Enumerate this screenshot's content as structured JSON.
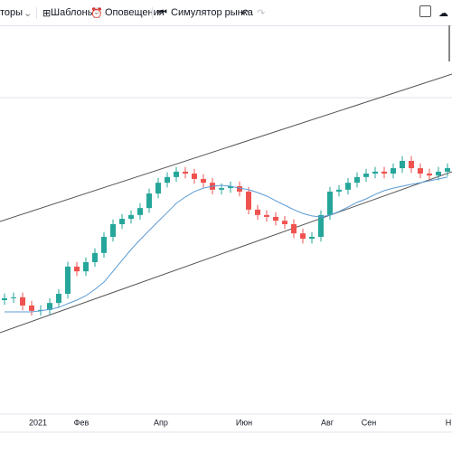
{
  "toolbar": {
    "indicators": "торы",
    "templates": "Шаблоны",
    "alerts": "Оповещения",
    "replay": "Симулятор рынка"
  },
  "chart_data": {
    "type": "candlestick",
    "up_color": "#26a69a",
    "down_color": "#ef5350",
    "ma_color": "#5b9bd5",
    "ylim": [
      0,
      100
    ],
    "xlim": [
      -0.5,
      49.5
    ],
    "xticks": [
      {
        "value": 3.7,
        "label": "2021"
      },
      {
        "value": 8.5,
        "label": "Фев"
      },
      {
        "value": 17.3,
        "label": "Апр"
      },
      {
        "value": 26.5,
        "label": "Июн"
      },
      {
        "value": 35.7,
        "label": "Авг"
      },
      {
        "value": 40.3,
        "label": "Сен"
      },
      {
        "value": 49.1,
        "label": "Н"
      }
    ],
    "open": [
      36.0,
      36.6,
      36.9,
      34.3,
      32.6,
      32.9,
      35.1,
      38.0,
      46.6,
      45.1,
      48.0,
      50.9,
      56.0,
      60.0,
      61.7,
      62.9,
      65.1,
      69.7,
      73.1,
      74.9,
      76.6,
      76.0,
      74.3,
      73.1,
      70.9,
      71.4,
      72.0,
      70.3,
      64.6,
      62.9,
      62.3,
      61.1,
      60.0,
      57.1,
      55.4,
      56.0,
      62.9,
      70.3,
      70.9,
      73.1,
      74.9,
      76.0,
      76.6,
      76.0,
      77.7,
      80.0,
      77.7,
      76.0,
      75.4,
      76.6
    ],
    "high": [
      38.1,
      38.4,
      38.4,
      35.8,
      34.4,
      36.6,
      39.5,
      48.1,
      48.1,
      49.5,
      52.4,
      57.5,
      61.5,
      63.2,
      64.4,
      66.6,
      71.2,
      74.6,
      76.4,
      78.1,
      78.1,
      77.5,
      75.8,
      74.6,
      72.9,
      73.5,
      73.5,
      71.8,
      66.1,
      64.4,
      63.8,
      62.6,
      61.5,
      58.6,
      57.5,
      64.4,
      71.8,
      72.4,
      74.6,
      76.4,
      77.5,
      78.1,
      78.1,
      79.2,
      81.5,
      81.5,
      79.2,
      77.5,
      78.1,
      79.2
    ],
    "low": [
      34.5,
      35.1,
      32.8,
      31.1,
      31.1,
      31.4,
      33.6,
      36.5,
      43.6,
      43.6,
      46.5,
      49.4,
      54.5,
      58.5,
      60.2,
      61.4,
      63.6,
      68.2,
      71.6,
      73.4,
      74.5,
      72.8,
      71.6,
      69.4,
      69.4,
      69.9,
      68.8,
      63.1,
      61.4,
      60.8,
      59.6,
      58.5,
      55.6,
      53.9,
      53.9,
      54.5,
      61.4,
      68.8,
      69.4,
      71.6,
      73.4,
      74.5,
      74.5,
      74.5,
      76.2,
      76.2,
      74.5,
      73.9,
      73.9,
      75.1
    ],
    "close": [
      36.6,
      36.9,
      34.3,
      32.6,
      32.9,
      35.1,
      38.0,
      46.6,
      45.1,
      48.0,
      50.9,
      56.0,
      60.0,
      61.7,
      62.9,
      65.1,
      69.7,
      73.1,
      74.9,
      76.6,
      76.0,
      74.3,
      73.1,
      70.9,
      71.4,
      72.0,
      70.3,
      64.6,
      62.9,
      62.3,
      61.1,
      60.0,
      57.1,
      55.4,
      56.0,
      62.9,
      70.3,
      70.9,
      73.1,
      74.9,
      76.0,
      76.6,
      76.0,
      77.7,
      80.0,
      77.7,
      76.0,
      75.4,
      76.6,
      77.7
    ],
    "ma": [
      32.3,
      32.3,
      32.3,
      32.3,
      32.6,
      33.1,
      33.7,
      34.9,
      36.0,
      37.4,
      39.4,
      41.7,
      45.1,
      48.6,
      52.0,
      55.1,
      58.0,
      60.9,
      63.7,
      66.6,
      68.6,
      70.3,
      71.4,
      72.0,
      72.3,
      72.0,
      71.4,
      70.9,
      70.0,
      68.9,
      67.4,
      66.0,
      64.6,
      63.4,
      62.6,
      62.3,
      62.9,
      64.0,
      65.4,
      66.9,
      68.0,
      69.4,
      70.6,
      71.4,
      72.0,
      72.6,
      73.1,
      73.7,
      74.3,
      74.9
    ]
  }
}
